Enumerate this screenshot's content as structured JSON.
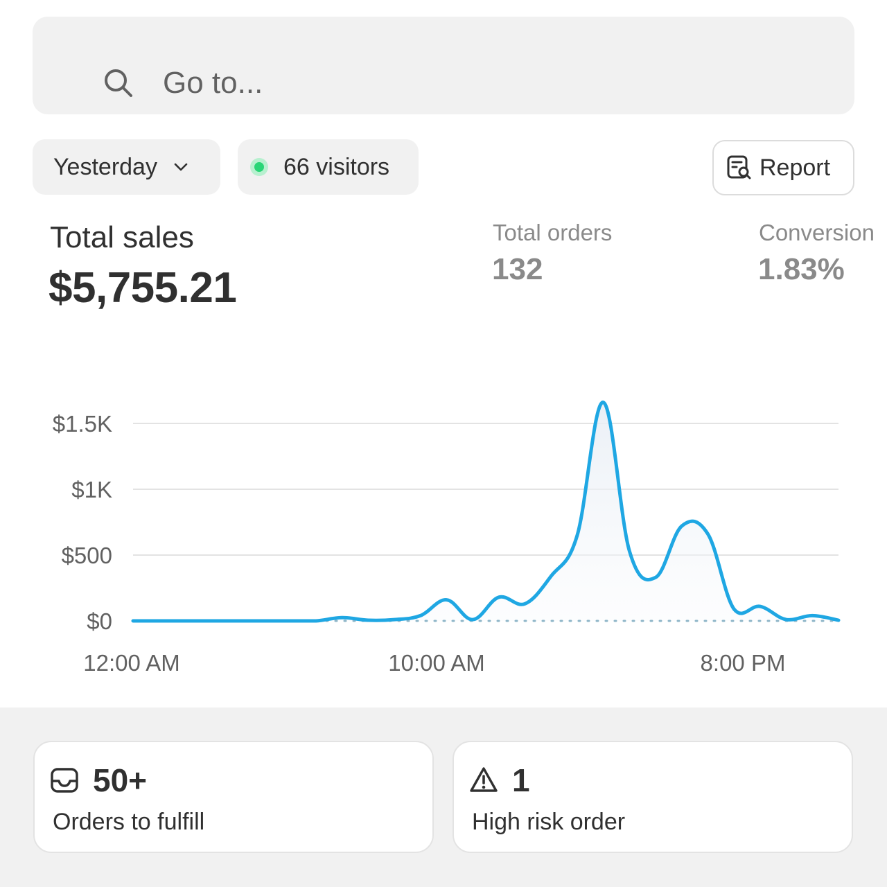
{
  "search": {
    "placeholder": "Go to...",
    "icon": "search-icon"
  },
  "filters": {
    "date_range": "Yesterday",
    "visitors": "66 visitors",
    "live_dot_color": "#29d576"
  },
  "report_button": {
    "label": "Report",
    "icon": "report-search-icon"
  },
  "metrics": {
    "total_sales": {
      "label": "Total sales",
      "value": "$5,755.21"
    },
    "total_orders": {
      "label": "Total orders",
      "value": "132"
    },
    "conversion": {
      "label": "Conversion",
      "value": "1.83%"
    }
  },
  "chart_data": {
    "type": "line",
    "line_color": "#1fa7e3",
    "grid": true,
    "ylim": [
      0,
      1500
    ],
    "y_ticks": [
      {
        "value": 0,
        "label": "$0"
      },
      {
        "value": 500,
        "label": "$500"
      },
      {
        "value": 1000,
        "label": "$1K"
      },
      {
        "value": 1500,
        "label": "$1.5K"
      }
    ],
    "x_ticks": [
      {
        "hour": 0,
        "label": "12:00 AM"
      },
      {
        "hour": 10,
        "label": "10:00 AM"
      },
      {
        "hour": 20,
        "label": "8:00 PM"
      }
    ],
    "series": [
      {
        "points": [
          [
            0,
            0
          ],
          [
            1,
            0
          ],
          [
            2,
            0
          ],
          [
            3,
            0
          ],
          [
            4,
            0
          ],
          [
            5,
            0
          ],
          [
            6,
            0
          ],
          [
            7,
            0
          ],
          [
            8,
            25
          ],
          [
            9,
            5
          ],
          [
            10,
            10
          ],
          [
            11,
            40
          ],
          [
            12,
            160
          ],
          [
            13,
            10
          ],
          [
            14,
            180
          ],
          [
            15,
            130
          ],
          [
            16,
            340
          ],
          [
            17,
            650
          ],
          [
            18,
            1660
          ],
          [
            19,
            530
          ],
          [
            20,
            330
          ],
          [
            21,
            720
          ],
          [
            22,
            660
          ],
          [
            23,
            90
          ],
          [
            24,
            110
          ],
          [
            25,
            10
          ],
          [
            26,
            40
          ],
          [
            27,
            5
          ]
        ]
      }
    ]
  },
  "cards": [
    {
      "icon": "inbox-icon",
      "value": "50+",
      "label": "Orders to fulfill"
    },
    {
      "icon": "warning-icon",
      "value": "1",
      "label": "High risk order"
    }
  ]
}
